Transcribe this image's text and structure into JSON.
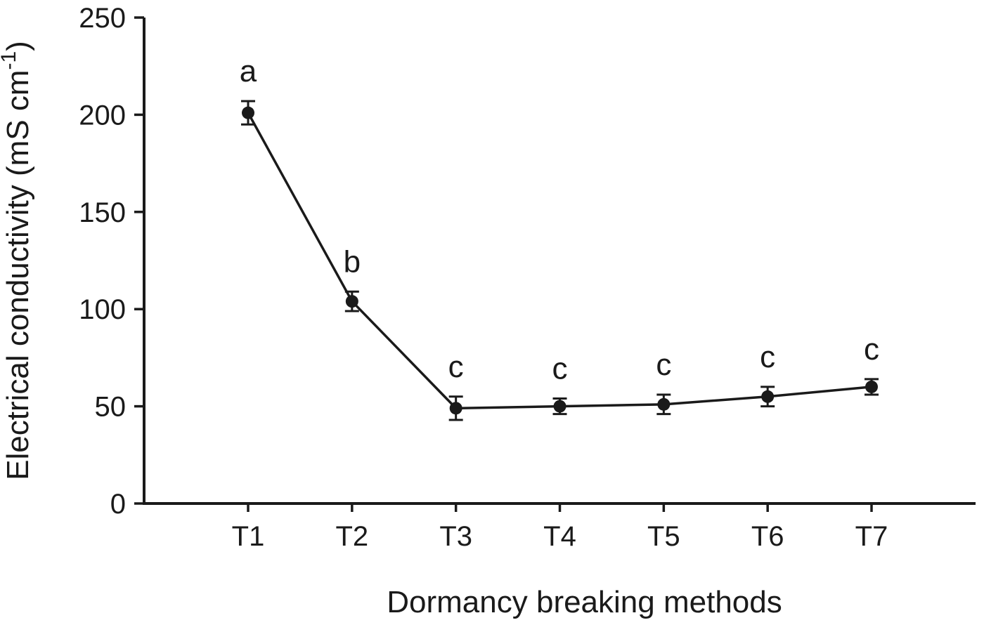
{
  "chart_data": {
    "type": "line",
    "title": "",
    "categories": [
      "T1",
      "T2",
      "T3",
      "T4",
      "T5",
      "T6",
      "T7"
    ],
    "values": [
      201,
      104,
      49,
      50,
      51,
      55,
      60
    ],
    "errors": [
      6,
      5,
      6,
      4,
      5,
      5,
      4
    ],
    "point_labels": [
      "a",
      "b",
      "c",
      "c",
      "c",
      "c",
      "c"
    ],
    "xlabel": "Dormancy breaking methods",
    "ylabel": "Electrical conductivity (mS cm⁻¹)",
    "ylabel_parts": {
      "main": "Electrical conductivity (mS cm",
      "sup": "-1",
      "close": ")"
    },
    "ylim": [
      0,
      250
    ],
    "yticks": [
      0,
      50,
      100,
      150,
      200,
      250
    ],
    "legend": "none",
    "grid": "off",
    "marker": "filled-circle",
    "line_color": "#1a1a1a",
    "marker_color": "#1a1a1a",
    "axis_color": "#1a1a1a",
    "background_color": "#ffffff"
  }
}
